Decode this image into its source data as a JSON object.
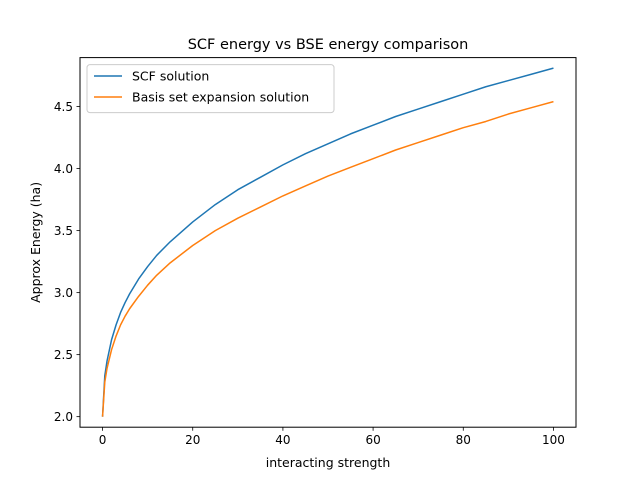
{
  "chart_data": {
    "type": "line",
    "title": "SCF energy vs BSE energy comparison",
    "xlabel": "interacting strength",
    "ylabel": "Approx Energy (ha)",
    "xlim": [
      -5,
      105
    ],
    "ylim": [
      1.915,
      4.895
    ],
    "xticks": [
      0,
      20,
      40,
      60,
      80,
      100
    ],
    "xtick_labels": [
      "0",
      "20",
      "40",
      "60",
      "80",
      "100"
    ],
    "yticks": [
      2.0,
      2.5,
      3.0,
      3.5,
      4.0,
      4.5
    ],
    "ytick_labels": [
      "2.0",
      "2.5",
      "3.0",
      "3.5",
      "4.0",
      "4.5"
    ],
    "grid": false,
    "legend_position": "top-left",
    "series": [
      {
        "name": "SCF solution",
        "color": "#1f77b4",
        "x": [
          0,
          0.5,
          1,
          2,
          3,
          4,
          5,
          6,
          8,
          10,
          12,
          15,
          20,
          25,
          30,
          35,
          40,
          45,
          50,
          55,
          60,
          65,
          70,
          75,
          80,
          85,
          90,
          95,
          100
        ],
        "y": [
          2.0,
          2.33,
          2.45,
          2.62,
          2.74,
          2.84,
          2.92,
          2.99,
          3.11,
          3.21,
          3.3,
          3.41,
          3.57,
          3.71,
          3.83,
          3.93,
          4.03,
          4.12,
          4.2,
          4.28,
          4.35,
          4.42,
          4.48,
          4.54,
          4.6,
          4.66,
          4.71,
          4.76,
          4.81
        ]
      },
      {
        "name": "Basis set expansion solution",
        "color": "#ff7f0e",
        "x": [
          0,
          0.5,
          1,
          2,
          3,
          4,
          5,
          6,
          8,
          10,
          12,
          15,
          20,
          25,
          30,
          35,
          40,
          45,
          50,
          55,
          60,
          65,
          70,
          75,
          80,
          85,
          90,
          95,
          100
        ],
        "y": [
          2.0,
          2.28,
          2.39,
          2.54,
          2.65,
          2.74,
          2.81,
          2.87,
          2.97,
          3.06,
          3.14,
          3.24,
          3.38,
          3.5,
          3.6,
          3.69,
          3.78,
          3.86,
          3.94,
          4.01,
          4.08,
          4.15,
          4.21,
          4.27,
          4.33,
          4.38,
          4.44,
          4.49,
          4.54
        ]
      }
    ]
  }
}
